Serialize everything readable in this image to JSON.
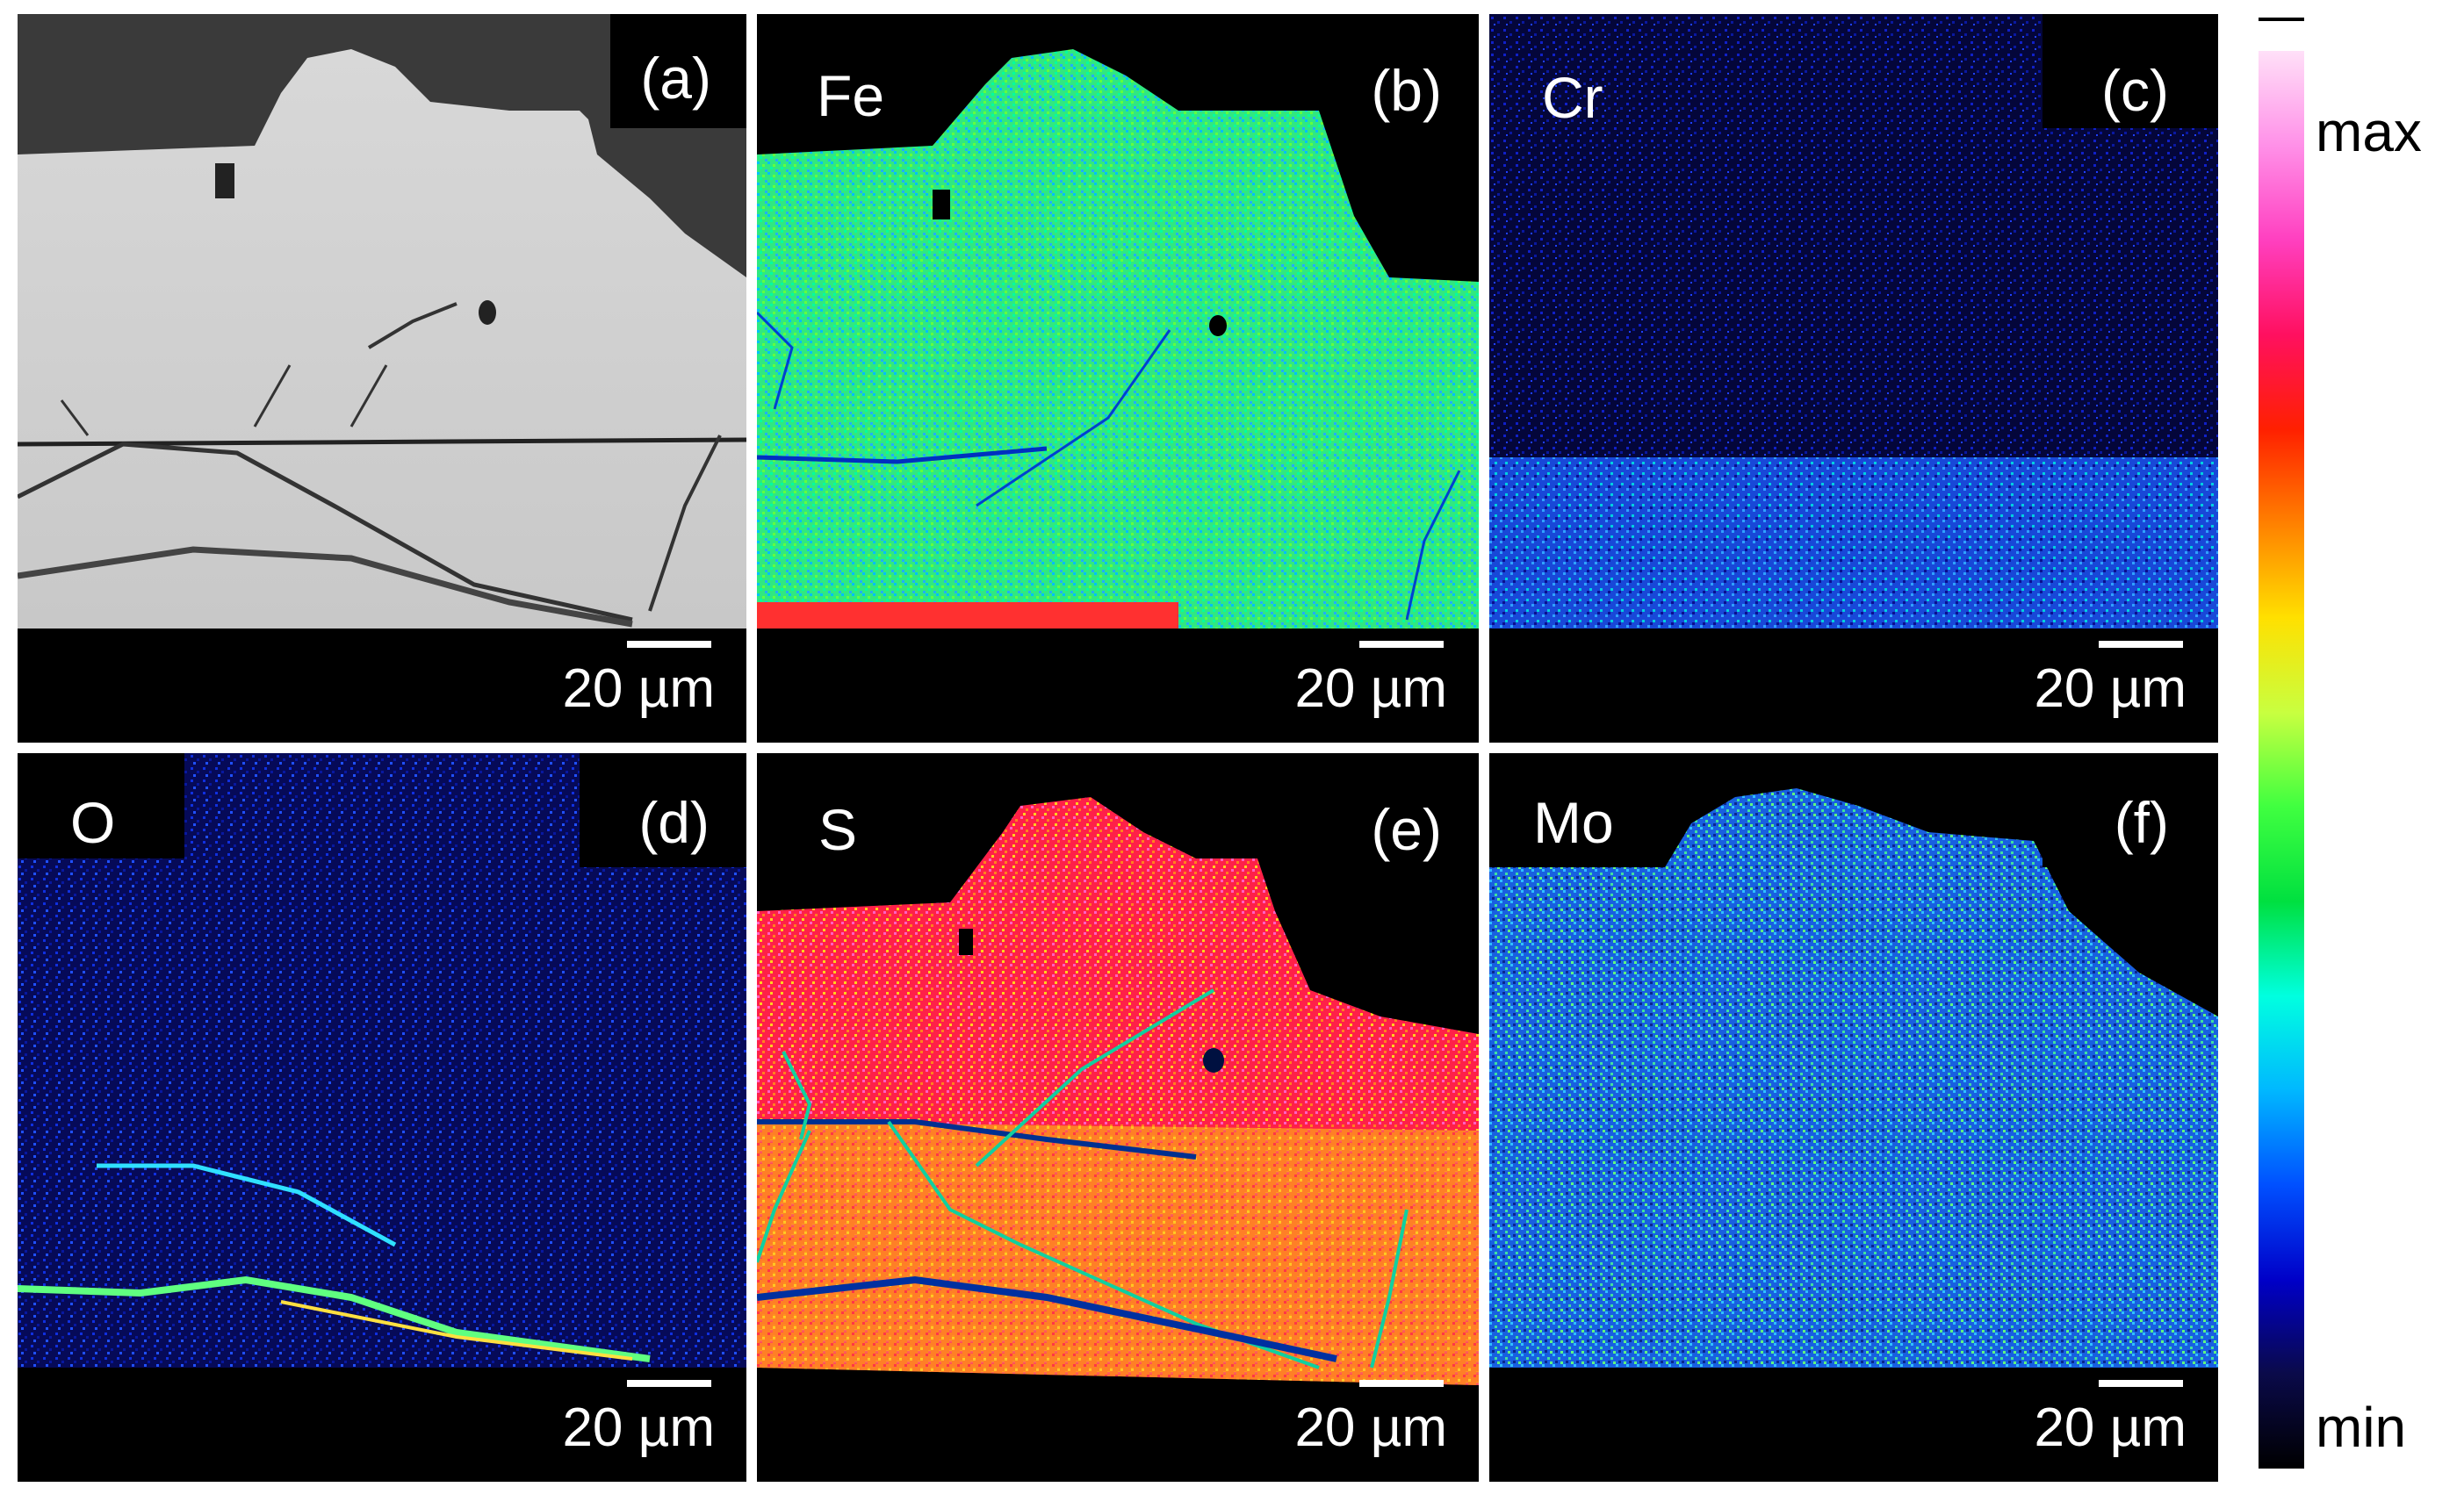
{
  "panels": [
    {
      "id": "a",
      "letter": "(a)",
      "element": "",
      "scale": "20 µm",
      "kind": "sem"
    },
    {
      "id": "b",
      "letter": "(b)",
      "element": "Fe",
      "scale": "20 µm",
      "kind": "fe"
    },
    {
      "id": "c",
      "letter": "(c)",
      "element": "Cr",
      "scale": "20 µm",
      "kind": "cr"
    },
    {
      "id": "d",
      "letter": "(d)",
      "element": "O",
      "scale": "20 µm",
      "kind": "o"
    },
    {
      "id": "e",
      "letter": "(e)",
      "element": "S",
      "scale": "20 µm",
      "kind": "s"
    },
    {
      "id": "f",
      "letter": "(f)",
      "element": "Mo",
      "scale": "20 µm",
      "kind": "mo"
    }
  ],
  "colorbar": {
    "max_label": "max",
    "min_label": "min",
    "stops": [
      "#000000",
      "#0a0a4a",
      "#0000c8",
      "#0050ff",
      "#00b8ff",
      "#00ffe0",
      "#00e040",
      "#40ff40",
      "#c8ff40",
      "#ffe000",
      "#ff8000",
      "#ff2000",
      "#ff1060",
      "#ff40c0",
      "#ff90e8",
      "#ffe0f8"
    ]
  }
}
